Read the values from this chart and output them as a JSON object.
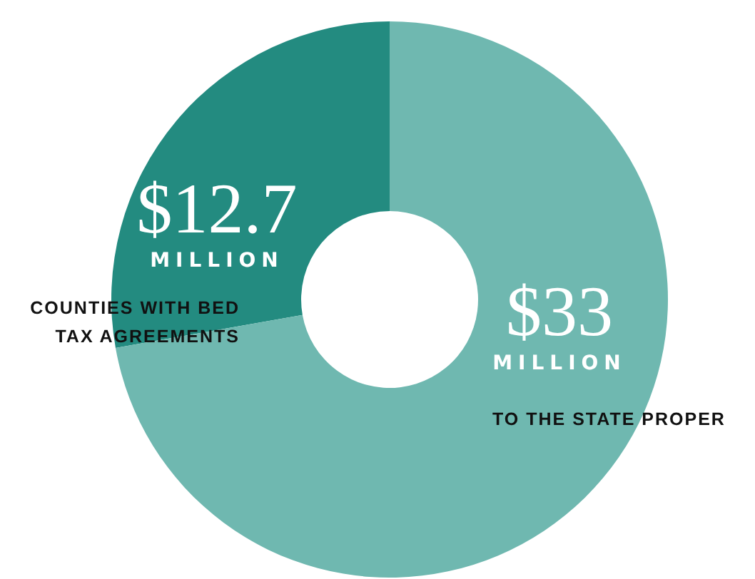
{
  "chart_data": {
    "type": "donut",
    "categories": [
      "COUNTIES WITH BED TAX AGREEMENTS",
      "TO THE STATE PROPER"
    ],
    "values": [
      12.7,
      33
    ],
    "colors": [
      "#238b80",
      "#6fb8b0"
    ],
    "value_labels": [
      "$12.7 MILLION",
      "$33 MILLION"
    ]
  }
}
